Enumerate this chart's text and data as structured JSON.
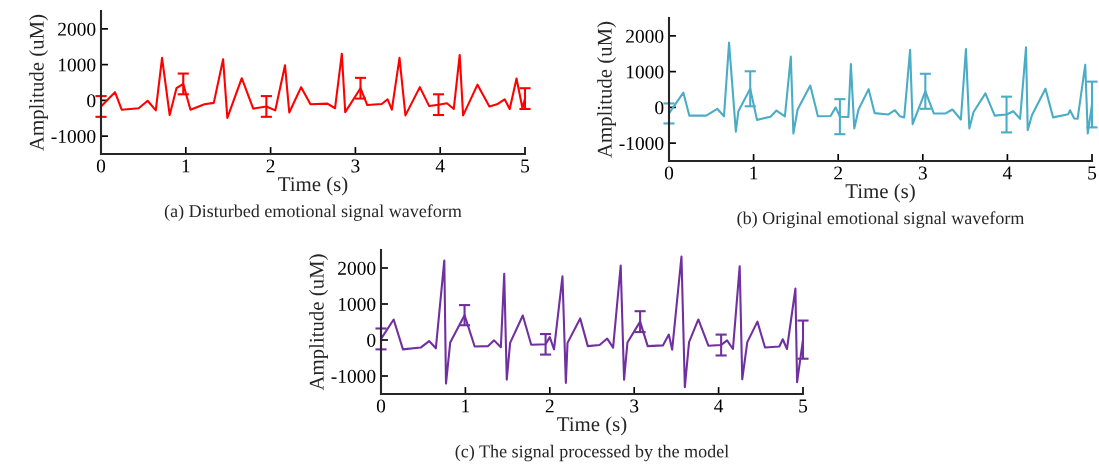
{
  "chart_data": [
    {
      "type": "line",
      "subtitle": "(a) Disturbed emotional signal waveform",
      "xlabel": "Time (s)",
      "ylabel": "Amplitude (uM)",
      "xlim": [
        0,
        5
      ],
      "ylim": [
        -1500,
        2500
      ],
      "xticks": [
        0,
        1,
        2,
        3,
        4,
        5
      ],
      "yticks": [
        -1000,
        0,
        1000,
        2000
      ],
      "grid": false,
      "marker": "none",
      "line_style": "solid",
      "series": [
        {
          "color": "#ff0000",
          "x": [
            0,
            0.165,
            0.244,
            0.445,
            0.55,
            0.646,
            0.72,
            0.81,
            0.89,
            0.97,
            1.055,
            1.22,
            1.33,
            1.44,
            1.49,
            1.66,
            1.795,
            1.95,
            2.055,
            2.17,
            2.22,
            2.36,
            2.47,
            2.67,
            2.76,
            2.84,
            2.88,
            3.06,
            3.14,
            3.31,
            3.38,
            3.43,
            3.52,
            3.59,
            3.76,
            3.87,
            3.98,
            4.08,
            4.16,
            4.23,
            4.27,
            4.44,
            4.58,
            4.67,
            4.76,
            4.82,
            4.9,
            4.97,
            5.0
          ],
          "values": [
            -170,
            230,
            -260,
            -220,
            -10,
            -280,
            1190,
            -410,
            340,
            460,
            -260,
            -110,
            -70,
            1150,
            -490,
            620,
            -230,
            -170,
            -280,
            980,
            -340,
            370,
            -110,
            -90,
            -220,
            1300,
            -330,
            340,
            -130,
            -100,
            30,
            -260,
            1190,
            -420,
            370,
            -160,
            -120,
            -80,
            -240,
            1270,
            -420,
            440,
            -170,
            -110,
            30,
            -240,
            610,
            -220,
            50
          ],
          "errors": [
            290,
            null,
            null,
            null,
            null,
            null,
            null,
            null,
            null,
            290,
            null,
            null,
            null,
            null,
            null,
            null,
            null,
            290,
            null,
            null,
            null,
            null,
            null,
            null,
            null,
            null,
            null,
            290,
            null,
            null,
            null,
            null,
            null,
            null,
            null,
            null,
            290,
            null,
            null,
            null,
            null,
            null,
            null,
            null,
            null,
            null,
            null,
            null,
            290
          ]
        }
      ]
    },
    {
      "type": "line",
      "subtitle": "(b) Original emotional signal waveform",
      "xlabel": "Time (s)",
      "ylabel": "Amplitude (uM)",
      "xlim": [
        0,
        5
      ],
      "ylim": [
        -1500,
        2500
      ],
      "xticks": [
        0,
        1,
        2,
        3,
        4,
        5
      ],
      "yticks": [
        -1000,
        0,
        1000,
        2000
      ],
      "grid": false,
      "marker": "none",
      "line_style": "solid",
      "series": [
        {
          "color": "#4bacc6",
          "x": [
            0,
            0.17,
            0.24,
            0.44,
            0.57,
            0.65,
            0.71,
            0.79,
            0.82,
            0.96,
            1.04,
            1.2,
            1.27,
            1.37,
            1.44,
            1.47,
            1.52,
            1.67,
            1.76,
            1.91,
            1.97,
            2.02,
            2.12,
            2.15,
            2.19,
            2.24,
            2.36,
            2.43,
            2.59,
            2.67,
            2.73,
            2.78,
            2.85,
            2.88,
            3.03,
            3.13,
            3.27,
            3.35,
            3.45,
            3.51,
            3.55,
            3.6,
            3.74,
            3.85,
            3.99,
            4.07,
            4.15,
            4.22,
            4.24,
            4.29,
            4.45,
            4.54,
            4.72,
            4.74,
            4.79,
            4.83,
            4.92,
            4.95,
            5.0
          ],
          "values": [
            -170,
            410,
            -230,
            -230,
            -40,
            -250,
            1810,
            -680,
            -110,
            520,
            -350,
            -260,
            -90,
            -250,
            1420,
            -730,
            -60,
            610,
            -250,
            -240,
            0,
            -260,
            -270,
            1210,
            -590,
            -60,
            510,
            -160,
            -200,
            -80,
            -250,
            -280,
            1610,
            -470,
            450,
            -170,
            -170,
            -60,
            -340,
            1630,
            -590,
            -130,
            390,
            -230,
            -200,
            -110,
            -320,
            1680,
            -640,
            -220,
            520,
            -280,
            -190,
            -80,
            -310,
            -320,
            1190,
            -730,
            80
          ],
          "errors": [
            280,
            null,
            null,
            null,
            null,
            null,
            null,
            null,
            null,
            490,
            null,
            null,
            null,
            null,
            null,
            null,
            null,
            null,
            null,
            null,
            null,
            490,
            null,
            null,
            null,
            null,
            null,
            null,
            null,
            null,
            null,
            null,
            null,
            null,
            490,
            null,
            null,
            null,
            null,
            null,
            null,
            null,
            null,
            null,
            500,
            null,
            null,
            null,
            null,
            null,
            null,
            null,
            null,
            null,
            null,
            null,
            null,
            null,
            640
          ]
        }
      ]
    },
    {
      "type": "line",
      "subtitle": "(c) The signal processed by the model",
      "xlabel": "Time (s)",
      "ylabel": "Amplitude (uM)",
      "xlim": [
        0,
        5
      ],
      "ylim": [
        -1500,
        2500
      ],
      "xticks": [
        0,
        1,
        2,
        3,
        4,
        5
      ],
      "yticks": [
        -1000,
        0,
        1000,
        2000
      ],
      "grid": false,
      "marker": "none",
      "line_style": "solid",
      "series": [
        {
          "color": "#7030a0",
          "x": [
            0,
            0.15,
            0.26,
            0.47,
            0.57,
            0.65,
            0.75,
            0.77,
            0.82,
            0.99,
            1.11,
            1.27,
            1.34,
            1.42,
            1.46,
            1.49,
            1.53,
            1.68,
            1.78,
            1.95,
            2.0,
            2.05,
            2.15,
            2.19,
            2.21,
            2.36,
            2.45,
            2.59,
            2.68,
            2.75,
            2.84,
            2.88,
            2.92,
            3.07,
            3.16,
            3.34,
            3.41,
            3.45,
            3.56,
            3.6,
            3.65,
            3.76,
            3.88,
            4.03,
            4.1,
            4.17,
            4.25,
            4.28,
            4.34,
            4.46,
            4.55,
            4.72,
            4.76,
            4.81,
            4.91,
            4.93,
            5.0
          ],
          "values": [
            30,
            570,
            -260,
            -210,
            -30,
            -230,
            2210,
            -1210,
            -70,
            690,
            -180,
            -170,
            -10,
            -200,
            1840,
            -1100,
            -80,
            680,
            -130,
            -120,
            80,
            -260,
            1770,
            -1190,
            -80,
            600,
            -170,
            -140,
            40,
            -210,
            2070,
            -1100,
            -70,
            510,
            -170,
            -150,
            150,
            -270,
            2320,
            -1310,
            -60,
            570,
            -160,
            -140,
            -10,
            -250,
            2050,
            -1090,
            -60,
            510,
            -210,
            -180,
            20,
            -250,
            1430,
            -1170,
            10
          ],
          "errors": [
            290,
            null,
            null,
            null,
            null,
            null,
            null,
            null,
            null,
            280,
            null,
            null,
            null,
            null,
            null,
            null,
            null,
            null,
            null,
            285,
            null,
            null,
            null,
            null,
            null,
            null,
            null,
            null,
            null,
            null,
            null,
            null,
            null,
            290,
            null,
            null,
            null,
            null,
            null,
            null,
            null,
            null,
            null,
            290,
            null,
            null,
            null,
            null,
            null,
            null,
            null,
            null,
            null,
            null,
            null,
            null,
            530
          ]
        }
      ]
    }
  ]
}
